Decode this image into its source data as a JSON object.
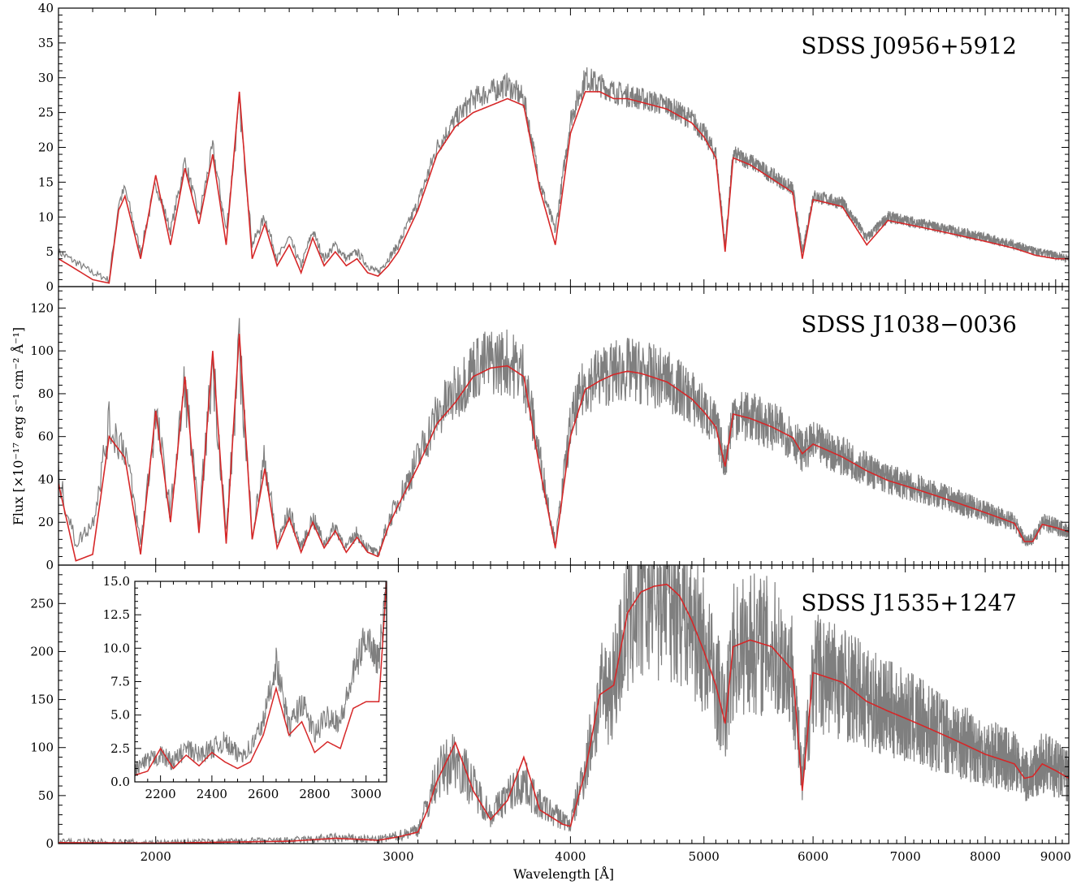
{
  "figure": {
    "xlabel": "Wavelength [Å]",
    "ylabel": "Flux [×10⁻¹⁷ erg s⁻¹ cm⁻² Å⁻¹]",
    "x_axis": "log",
    "xlim": [
      1700,
      9200
    ],
    "x_major_ticks": [
      2000,
      3000,
      4000,
      5000,
      6000,
      7000,
      8000,
      9000
    ],
    "x_major_tick_labels": [
      "2000",
      "3000",
      "4000",
      "5000",
      "6000",
      "7000",
      "8000",
      "9000"
    ],
    "x_minor_tick_step": 100,
    "colors": {
      "observed": "#7f7f7f",
      "model": "#d62728"
    }
  },
  "chart_data": [
    {
      "type": "line",
      "label": "SDSS J0956+5912",
      "ylim": [
        0,
        40
      ],
      "y_ticks": [
        0,
        5,
        10,
        15,
        20,
        25,
        30,
        35,
        40
      ],
      "y_tick_labels": [
        "0",
        "5",
        "10",
        "15",
        "20",
        "25",
        "30",
        "35",
        "40"
      ],
      "series": [
        {
          "role": "observed",
          "x": [
            1700,
            1800,
            1850,
            1880,
            1900,
            1950,
            2000,
            2050,
            2100,
            2150,
            2200,
            2250,
            2300,
            2350,
            2400,
            2450,
            2500,
            2550,
            2600,
            2650,
            2700,
            2750,
            2800,
            2850,
            2900,
            2950,
            3000,
            3050,
            3100,
            3150,
            3200,
            3300,
            3400,
            3500,
            3600,
            3700,
            3800,
            3900,
            4000,
            4100,
            4200,
            4300,
            4400,
            4500,
            4600,
            4700,
            4800,
            4900,
            5000,
            5100,
            5180,
            5250,
            5400,
            5600,
            5800,
            5893,
            6000,
            6300,
            6563,
            6800,
            7200,
            7600,
            8000,
            8400,
            8700,
            9000,
            9200
          ],
          "y": [
            5,
            2,
            1,
            12,
            14,
            5,
            15,
            8,
            18,
            10,
            20,
            8,
            26,
            6,
            10,
            4,
            7,
            3,
            8,
            4,
            6,
            4,
            5,
            3,
            2,
            4,
            6,
            9,
            12,
            16,
            20,
            24,
            27,
            28,
            29,
            27,
            15,
            8,
            24,
            30,
            29,
            28,
            27.5,
            27,
            26.5,
            26,
            25,
            24,
            22,
            19,
            6,
            19,
            18,
            16,
            14,
            5,
            13,
            12,
            7,
            10,
            9,
            8,
            7,
            6,
            5,
            4.5,
            4
          ]
        },
        {
          "role": "model",
          "x": [
            1700,
            1800,
            1850,
            1880,
            1900,
            1950,
            2000,
            2050,
            2100,
            2150,
            2200,
            2250,
            2300,
            2350,
            2400,
            2450,
            2500,
            2550,
            2600,
            2650,
            2700,
            2750,
            2800,
            2850,
            2900,
            2950,
            3000,
            3050,
            3100,
            3150,
            3200,
            3300,
            3400,
            3500,
            3600,
            3700,
            3800,
            3900,
            4000,
            4100,
            4200,
            4300,
            4400,
            4500,
            4600,
            4700,
            4800,
            4900,
            5000,
            5100,
            5180,
            5250,
            5400,
            5600,
            5800,
            5893,
            6000,
            6300,
            6563,
            6800,
            7200,
            7600,
            8000,
            8400,
            8700,
            9000,
            9200
          ],
          "y": [
            4,
            1,
            0.5,
            11,
            13,
            4,
            16,
            6,
            17,
            9,
            19,
            6,
            28,
            4,
            9,
            3,
            6,
            2,
            7,
            3,
            5,
            3,
            4,
            2,
            1.5,
            3,
            5,
            8,
            11,
            15,
            19,
            23,
            25,
            26,
            27,
            26,
            14,
            6,
            22,
            28,
            28,
            27,
            27,
            26.5,
            26,
            25.5,
            24.5,
            23.5,
            21.5,
            18.5,
            5,
            18.5,
            17.5,
            15.5,
            13.5,
            4,
            12.5,
            11.5,
            6,
            9.5,
            8.5,
            7.5,
            6.5,
            5.5,
            4.5,
            4,
            4
          ]
        }
      ]
    },
    {
      "type": "line",
      "label": "SDSS J1038−0036",
      "ylim": [
        0,
        130
      ],
      "y_ticks": [
        0,
        20,
        40,
        60,
        80,
        100,
        120
      ],
      "y_tick_labels": [
        "0",
        "20",
        "40",
        "60",
        "80",
        "100",
        "120"
      ],
      "series": [
        {
          "role": "observed",
          "x": [
            1700,
            1750,
            1800,
            1850,
            1900,
            1950,
            2000,
            2050,
            2100,
            2150,
            2200,
            2250,
            2300,
            2350,
            2400,
            2450,
            2500,
            2550,
            2600,
            2650,
            2700,
            2750,
            2800,
            2850,
            2900,
            2950,
            3000,
            3050,
            3100,
            3150,
            3200,
            3300,
            3400,
            3500,
            3600,
            3700,
            3800,
            3900,
            4000,
            4100,
            4200,
            4300,
            4400,
            4500,
            4600,
            4700,
            4800,
            4900,
            5000,
            5100,
            5180,
            5250,
            5400,
            5600,
            5800,
            5893,
            6000,
            6300,
            6563,
            6800,
            7200,
            7600,
            8000,
            8400,
            8542,
            8662,
            8800,
            9000,
            9200
          ],
          "y": [
            40,
            10,
            20,
            65,
            55,
            10,
            70,
            25,
            85,
            20,
            95,
            15,
            100,
            15,
            50,
            10,
            25,
            8,
            22,
            10,
            18,
            8,
            15,
            8,
            5,
            20,
            30,
            40,
            50,
            60,
            70,
            80,
            92,
            95,
            95,
            90,
            50,
            10,
            65,
            85,
            88,
            90,
            91,
            90,
            88,
            86,
            82,
            78,
            72,
            65,
            48,
            71,
            69,
            65,
            60,
            53,
            57,
            51,
            45,
            40,
            35,
            30,
            25,
            20,
            12,
            12,
            20,
            18,
            16
          ]
        },
        {
          "role": "model",
          "x": [
            1700,
            1750,
            1800,
            1850,
            1900,
            1950,
            2000,
            2050,
            2100,
            2150,
            2200,
            2250,
            2300,
            2350,
            2400,
            2450,
            2500,
            2550,
            2600,
            2650,
            2700,
            2750,
            2800,
            2850,
            2900,
            2950,
            3000,
            3050,
            3100,
            3150,
            3200,
            3300,
            3400,
            3500,
            3600,
            3700,
            3800,
            3900,
            4000,
            4100,
            4200,
            4300,
            4400,
            4500,
            4600,
            4700,
            4800,
            4900,
            5000,
            5100,
            5180,
            5250,
            5400,
            5600,
            5800,
            5893,
            6000,
            6300,
            6563,
            6800,
            7200,
            7600,
            8000,
            8400,
            8542,
            8662,
            8800,
            9000,
            9200
          ],
          "y": [
            38,
            2,
            5,
            60,
            50,
            5,
            72,
            20,
            88,
            15,
            100,
            10,
            108,
            12,
            45,
            8,
            22,
            6,
            20,
            8,
            16,
            6,
            13,
            6,
            4,
            18,
            28,
            37,
            46,
            56,
            66,
            76,
            88,
            92,
            93,
            88,
            45,
            8,
            60,
            82,
            86,
            89,
            90.5,
            89.5,
            87.5,
            85.5,
            81.5,
            77.5,
            71.5,
            64.5,
            46,
            70.5,
            68.5,
            64.5,
            59.5,
            52,
            56.5,
            50.5,
            44,
            39.5,
            34.5,
            29.5,
            24.5,
            19.5,
            11,
            11,
            19,
            17.5,
            15.5
          ]
        }
      ]
    },
    {
      "type": "line",
      "label": "SDSS J1535+1247",
      "ylim": [
        0,
        290
      ],
      "y_ticks": [
        0,
        50,
        100,
        150,
        200,
        250
      ],
      "y_tick_labels": [
        "0",
        "50",
        "100",
        "150",
        "200",
        "250"
      ],
      "series": [
        {
          "role": "observed",
          "x": [
            1700,
            2000,
            2500,
            2700,
            2900,
            3000,
            3100,
            3150,
            3200,
            3300,
            3400,
            3500,
            3600,
            3700,
            3800,
            3900,
            3950,
            4000,
            4100,
            4200,
            4300,
            4400,
            4500,
            4600,
            4700,
            4800,
            4900,
            5000,
            5100,
            5180,
            5250,
            5400,
            5600,
            5800,
            5893,
            6000,
            6300,
            6563,
            6800,
            7200,
            7600,
            8000,
            8400,
            8542,
            8662,
            8800,
            9000,
            9200
          ],
          "y": [
            2,
            1,
            3,
            6,
            4,
            8,
            15,
            40,
            70,
            90,
            60,
            30,
            50,
            65,
            40,
            30,
            25,
            20,
            80,
            150,
            170,
            230,
            255,
            262,
            265,
            255,
            235,
            205,
            170,
            130,
            200,
            210,
            205,
            180,
            60,
            180,
            170,
            150,
            140,
            125,
            110,
            95,
            85,
            70,
            72,
            85,
            78,
            70
          ]
        },
        {
          "role": "model",
          "x": [
            1700,
            2000,
            2500,
            2700,
            2900,
            3000,
            3100,
            3150,
            3200,
            3300,
            3400,
            3500,
            3600,
            3700,
            3800,
            3900,
            3950,
            4000,
            4100,
            4200,
            4300,
            4400,
            4500,
            4600,
            4700,
            4800,
            4900,
            5000,
            5100,
            5180,
            5250,
            5400,
            5600,
            5800,
            5893,
            6000,
            6300,
            6563,
            6800,
            7200,
            7600,
            8000,
            8400,
            8542,
            8662,
            8800,
            9000,
            9200
          ],
          "y": [
            1,
            0.5,
            2.5,
            5.5,
            3.5,
            7,
            12,
            35,
            65,
            105,
            55,
            25,
            45,
            90,
            35,
            25,
            20,
            18,
            75,
            155,
            165,
            240,
            262,
            268,
            270,
            258,
            232,
            200,
            165,
            125,
            205,
            212,
            205,
            180,
            55,
            178,
            168,
            148,
            138,
            123,
            108,
            93,
            83,
            68,
            70,
            83,
            76,
            68
          ]
        }
      ],
      "inset": {
        "xlim": [
          2100,
          3080
        ],
        "ylim": [
          0,
          15
        ],
        "x_ticks": [
          2200,
          2400,
          2600,
          2800,
          3000
        ],
        "x_tick_labels": [
          "2200",
          "2400",
          "2600",
          "2800",
          "3000"
        ],
        "y_ticks": [
          0,
          2.5,
          5,
          7.5,
          10,
          12.5,
          15
        ],
        "y_tick_labels": [
          "0.0",
          "2.5",
          "5.0",
          "7.5",
          "10.0",
          "12.5",
          "15.0"
        ],
        "series": [
          {
            "role": "observed",
            "x": [
              2100,
              2150,
              2200,
              2250,
              2300,
              2350,
              2400,
              2450,
              2500,
              2550,
              2600,
              2650,
              2700,
              2750,
              2800,
              2850,
              2900,
              2950,
              3000,
              3050,
              3080
            ],
            "y": [
              1,
              1.5,
              2,
              1.5,
              2.5,
              2,
              2.5,
              3,
              2,
              2.5,
              4.5,
              9,
              4,
              6,
              3.5,
              5,
              4.5,
              8,
              11,
              9,
              15
            ]
          },
          {
            "role": "model",
            "x": [
              2100,
              2150,
              2200,
              2250,
              2300,
              2350,
              2400,
              2450,
              2500,
              2550,
              2600,
              2650,
              2700,
              2750,
              2800,
              2850,
              2900,
              2950,
              3000,
              3050,
              3080
            ],
            "y": [
              0.5,
              0.8,
              2.5,
              1,
              2,
              1.2,
              2.2,
              1.5,
              1,
              1.5,
              3.5,
              7,
              3.5,
              4.5,
              2.2,
              3,
              2.5,
              5.5,
              6,
              6,
              15
            ]
          }
        ]
      }
    }
  ]
}
